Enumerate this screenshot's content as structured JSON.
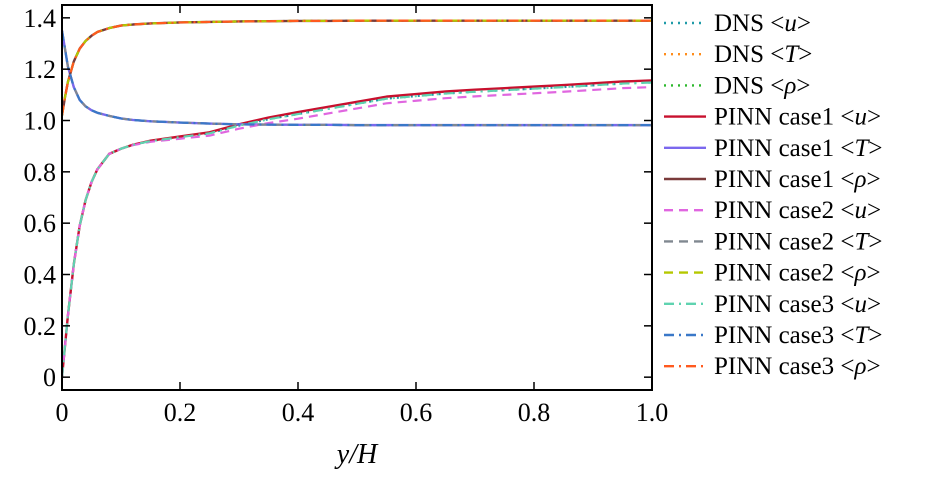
{
  "chart_data": {
    "type": "line",
    "xlabel": "y/H",
    "ylabel": "",
    "xlim": [
      0,
      1.0
    ],
    "ylim": [
      -0.05,
      1.45
    ],
    "xticks": [
      "0",
      "0.2",
      "0.4",
      "0.6",
      "0.8",
      "1.0"
    ],
    "xtick_values": [
      0,
      0.2,
      0.4,
      0.6,
      0.8,
      1.0
    ],
    "yticks": [
      "0",
      "0.2",
      "0.4",
      "0.6",
      "0.8",
      "1.0",
      "1.2",
      "1.4"
    ],
    "ytick_values": [
      0,
      0.2,
      0.4,
      0.6,
      0.8,
      1.0,
      1.2,
      1.4
    ],
    "grid": false,
    "legend_position": "outside-right",
    "series": [
      {
        "name": "DNS <u>",
        "prefix": "DNS <",
        "var": "u",
        "suffix": ">",
        "color": "#1f9ba8",
        "dash": "dot",
        "profile": "u",
        "offset": 0
      },
      {
        "name": "DNS <T>",
        "prefix": "DNS <",
        "var": "T",
        "suffix": ">",
        "color": "#ff8c1a",
        "dash": "dot",
        "profile": "T",
        "offset": 0
      },
      {
        "name": "DNS <ρ>",
        "prefix": "DNS <",
        "var": "ρ",
        "suffix": ">",
        "color": "#2cb82c",
        "dash": "dot",
        "profile": "rho",
        "offset": 0
      },
      {
        "name": "PINN case1 <u>",
        "prefix": "PINN case1 <",
        "var": "u",
        "suffix": ">",
        "color": "#c8102e",
        "dash": "solid",
        "profile": "u",
        "offset": 0.008
      },
      {
        "name": "PINN case1 <T>",
        "prefix": "PINN case1 <",
        "var": "T",
        "suffix": ">",
        "color": "#7b68ee",
        "dash": "solid",
        "profile": "T",
        "offset": 0
      },
      {
        "name": "PINN case1 <ρ>",
        "prefix": "PINN case1 <",
        "var": "ρ",
        "suffix": ">",
        "color": "#7a3b3b",
        "dash": "solid",
        "profile": "rho",
        "offset": 0
      },
      {
        "name": "PINN case2 <u>",
        "prefix": "PINN case2 <",
        "var": "u",
        "suffix": ">",
        "color": "#e066e0",
        "dash": "dash",
        "profile": "u",
        "offset": -0.018
      },
      {
        "name": "PINN case2 <T>",
        "prefix": "PINN case2 <",
        "var": "T",
        "suffix": ">",
        "color": "#808890",
        "dash": "dash",
        "profile": "T",
        "offset": 0
      },
      {
        "name": "PINN case2 <ρ>",
        "prefix": "PINN case2 <",
        "var": "ρ",
        "suffix": ">",
        "color": "#b5c800",
        "dash": "dash",
        "profile": "rho",
        "offset": 0
      },
      {
        "name": "PINN case3 <u>",
        "prefix": "PINN case3 <",
        "var": "u",
        "suffix": ">",
        "color": "#5fd3b0",
        "dash": "dashdot",
        "profile": "u",
        "offset": 0
      },
      {
        "name": "PINN case3 <T>",
        "prefix": "PINN case3 <",
        "var": "T",
        "suffix": ">",
        "color": "#3a78c8",
        "dash": "dashdot",
        "profile": "T",
        "offset": 0
      },
      {
        "name": "PINN case3 <ρ>",
        "prefix": "PINN case3 <",
        "var": "ρ",
        "suffix": ">",
        "color": "#ff5a1f",
        "dash": "dashdot",
        "profile": "rho",
        "offset": 0
      }
    ],
    "profiles": {
      "x": [
        0,
        0.005,
        0.01,
        0.02,
        0.03,
        0.04,
        0.05,
        0.06,
        0.08,
        0.1,
        0.12,
        0.15,
        0.2,
        0.25,
        0.3,
        0.35,
        0.4,
        0.45,
        0.5,
        0.55,
        0.6,
        0.65,
        0.7,
        0.75,
        0.8,
        0.85,
        0.9,
        0.95,
        1.0
      ],
      "u": [
        0.0,
        0.12,
        0.24,
        0.44,
        0.59,
        0.69,
        0.76,
        0.81,
        0.87,
        0.89,
        0.905,
        0.92,
        0.935,
        0.95,
        0.98,
        1.005,
        1.025,
        1.045,
        1.065,
        1.085,
        1.095,
        1.105,
        1.112,
        1.118,
        1.124,
        1.13,
        1.137,
        1.144,
        1.148
      ],
      "T": [
        1.35,
        1.28,
        1.21,
        1.13,
        1.08,
        1.055,
        1.04,
        1.03,
        1.018,
        1.008,
        1.002,
        0.997,
        0.992,
        0.988,
        0.985,
        0.984,
        0.983,
        0.983,
        0.982,
        0.982,
        0.982,
        0.982,
        0.982,
        0.982,
        0.982,
        0.982,
        0.982,
        0.982,
        0.982
      ],
      "rho": [
        1.02,
        1.09,
        1.15,
        1.23,
        1.28,
        1.31,
        1.33,
        1.345,
        1.36,
        1.37,
        1.374,
        1.378,
        1.382,
        1.384,
        1.386,
        1.387,
        1.388,
        1.388,
        1.389,
        1.389,
        1.389,
        1.389,
        1.389,
        1.389,
        1.389,
        1.389,
        1.389,
        1.389,
        1.389
      ]
    }
  }
}
